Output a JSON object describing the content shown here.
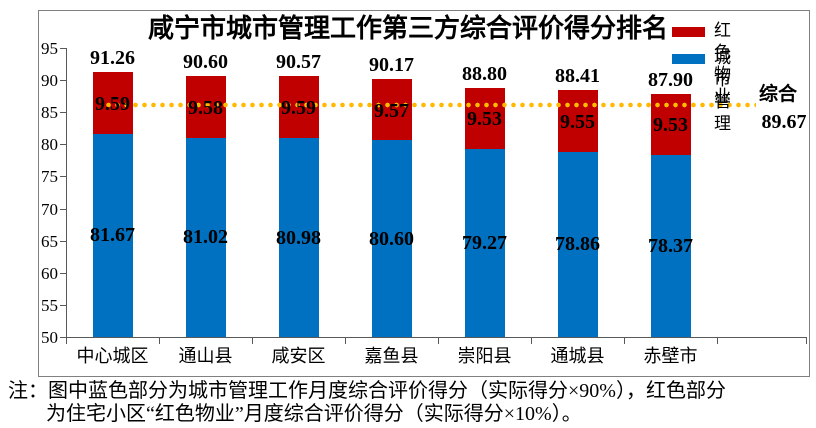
{
  "chart_data": {
    "type": "bar",
    "stacked": true,
    "title": "咸宁市城市管理工作第三方综合评价得分排名",
    "categories": [
      "中心城区",
      "通山县",
      "咸安区",
      "嘉鱼县",
      "崇阳县",
      "通城县",
      "赤壁市"
    ],
    "series": [
      {
        "name": "城市管理",
        "color": "#0070C0",
        "values": [
          81.67,
          81.02,
          80.98,
          80.6,
          79.27,
          78.86,
          78.37
        ]
      },
      {
        "name": "红色物业",
        "color": "#C00000",
        "values": [
          9.59,
          9.58,
          9.59,
          9.57,
          9.53,
          9.55,
          9.53
        ]
      }
    ],
    "totals": [
      91.26,
      90.6,
      90.57,
      90.17,
      88.8,
      88.41,
      87.9
    ],
    "ylim": [
      50,
      95
    ],
    "y_ticks": [
      95,
      90,
      85,
      80,
      75,
      70,
      65,
      60,
      55,
      50
    ],
    "grid": false,
    "legend_position": "top-right",
    "legend": [
      {
        "label": "红色物业",
        "color": "#C00000"
      },
      {
        "label": "城市管理",
        "color": "#0070C0"
      }
    ],
    "ref_line": {
      "label": "综合",
      "value": 89.67,
      "color": "#FFB900",
      "style": "dotted",
      "plotted_at_value": 86.1
    }
  },
  "note": {
    "lines": [
      "注：图中蓝色部分为城市管理工作月度综合评价得分（实际得分×90%），红色部分",
      "为住宅小区“红色物业”月度综合评价得分（实际得分×10%）。"
    ]
  },
  "colors": {
    "axis": "#595959",
    "border": "#808080",
    "background": "#FFFFFF",
    "label_text": "#000000"
  }
}
